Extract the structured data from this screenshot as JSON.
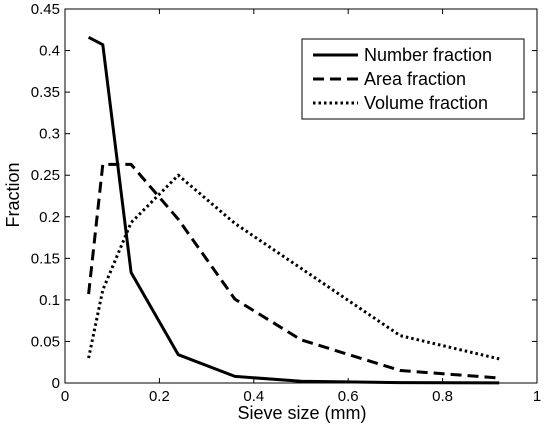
{
  "chart_data": {
    "type": "line",
    "xlabel": "Sieve size (mm)",
    "ylabel": "Fraction",
    "xlim": [
      0,
      1
    ],
    "ylim": [
      0,
      0.45
    ],
    "x_ticks": [
      0,
      0.2,
      0.4,
      0.6,
      0.8,
      1
    ],
    "x_tick_labels": [
      "0",
      "0.2",
      "0.4",
      "0.6",
      "0.8",
      "1"
    ],
    "y_ticks": [
      0,
      0.05,
      0.1,
      0.15,
      0.2,
      0.25,
      0.3,
      0.35,
      0.4,
      0.45
    ],
    "y_tick_labels": [
      "0",
      "0.05",
      "0.1",
      "0.15",
      "0.2",
      "0.25",
      "0.3",
      "0.35",
      "0.4",
      "0.45"
    ],
    "grid": false,
    "legend_position": "top-right",
    "series": [
      {
        "name": "Number fraction",
        "style": "solid",
        "x": [
          0.05,
          0.08,
          0.14,
          0.24,
          0.36,
          0.5,
          0.71,
          0.92
        ],
        "y": [
          0.416,
          0.407,
          0.133,
          0.034,
          0.008,
          0.002,
          0.0005,
          0.0001
        ]
      },
      {
        "name": "Area fraction",
        "style": "dashed",
        "x": [
          0.05,
          0.08,
          0.14,
          0.24,
          0.36,
          0.5,
          0.71,
          0.92
        ],
        "y": [
          0.107,
          0.263,
          0.263,
          0.197,
          0.101,
          0.052,
          0.015,
          0.006
        ]
      },
      {
        "name": "Volume fraction",
        "style": "dotted",
        "x": [
          0.05,
          0.08,
          0.14,
          0.24,
          0.36,
          0.5,
          0.71,
          0.92
        ],
        "y": [
          0.03,
          0.112,
          0.193,
          0.25,
          0.192,
          0.138,
          0.057,
          0.029
        ]
      }
    ]
  },
  "colors": {
    "line": "#000000",
    "background": "#ffffff"
  }
}
